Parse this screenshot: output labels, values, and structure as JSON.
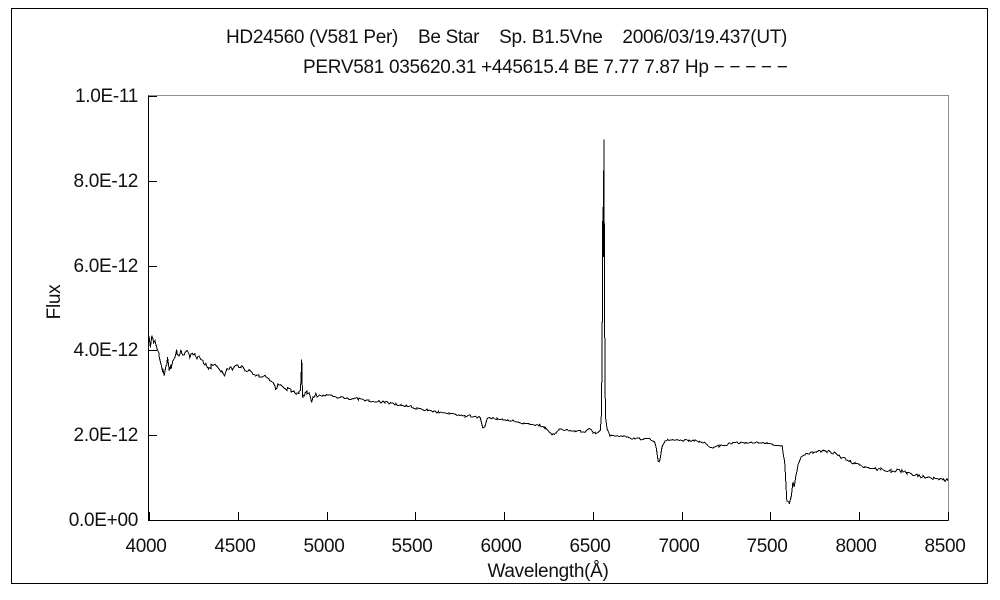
{
  "header": {
    "title_line1": "HD24560 (V581 Per)    Be Star    Sp. B1.5Vne    2006/03/19.437(UT)",
    "title_line2": "PERV581 035620.31 +445615.4 BE 7.77 7.87 Hp − − − − −"
  },
  "chart_data": {
    "type": "line",
    "title": "HD24560 (V581 Per)  Be Star  Sp. B1.5Vne  2006/03/19.437(UT)",
    "subtitle": "PERV581 035620.31 +445615.4 BE 7.77 7.87 Hp − − − − −",
    "xlabel": "Wavelength(Å)",
    "ylabel": "Flux",
    "xlim": [
      4000,
      8500
    ],
    "ylim_flux_1e12": [
      0,
      10
    ],
    "x_ticks": [
      4000,
      4500,
      5000,
      5500,
      6000,
      6500,
      7000,
      7500,
      8000,
      8500
    ],
    "x_tick_labels": [
      "4000",
      "4500",
      "5000",
      "5500",
      "6000",
      "6500",
      "7000",
      "7500",
      "8000",
      "8500"
    ],
    "y_ticks_flux_1e12": [
      0,
      2,
      4,
      6,
      8,
      10
    ],
    "y_tick_labels": [
      "0.0E+00",
      "2.0E-12",
      "4.0E-12",
      "6.0E-12",
      "8.0E-12",
      "1.0E-11"
    ],
    "grid": false,
    "legend_position": "none",
    "line_color": "#000000",
    "background_color": "#ffffff",
    "frame_top_right_color": "#8f8f8f",
    "flux_unit_factor": "1e-12",
    "series": [
      {
        "name": "HD24560 spectrum",
        "points": [
          [
            4000,
            4.33
          ],
          [
            4008,
            4.1
          ],
          [
            4016,
            4.28
          ],
          [
            4026,
            4.18
          ],
          [
            4036,
            4.22
          ],
          [
            4046,
            4.02
          ],
          [
            4056,
            3.92
          ],
          [
            4066,
            3.78
          ],
          [
            4076,
            3.58
          ],
          [
            4086,
            3.47
          ],
          [
            4096,
            3.62
          ],
          [
            4104,
            3.76
          ],
          [
            4114,
            3.58
          ],
          [
            4124,
            3.64
          ],
          [
            4134,
            3.74
          ],
          [
            4144,
            3.86
          ],
          [
            4156,
            3.94
          ],
          [
            4170,
            3.9
          ],
          [
            4184,
            3.97
          ],
          [
            4200,
            3.91
          ],
          [
            4214,
            3.95
          ],
          [
            4230,
            3.87
          ],
          [
            4246,
            3.93
          ],
          [
            4260,
            3.89
          ],
          [
            4276,
            3.84
          ],
          [
            4290,
            3.75
          ],
          [
            4306,
            3.7
          ],
          [
            4320,
            3.66
          ],
          [
            4336,
            3.56
          ],
          [
            4350,
            3.63
          ],
          [
            4366,
            3.67
          ],
          [
            4380,
            3.61
          ],
          [
            4396,
            3.55
          ],
          [
            4410,
            3.5
          ],
          [
            4426,
            3.43
          ],
          [
            4440,
            3.54
          ],
          [
            4456,
            3.59
          ],
          [
            4470,
            3.56
          ],
          [
            4486,
            3.61
          ],
          [
            4500,
            3.65
          ],
          [
            4520,
            3.6
          ],
          [
            4540,
            3.55
          ],
          [
            4560,
            3.52
          ],
          [
            4580,
            3.47
          ],
          [
            4600,
            3.43
          ],
          [
            4620,
            3.39
          ],
          [
            4640,
            3.34
          ],
          [
            4660,
            3.41
          ],
          [
            4680,
            3.3
          ],
          [
            4700,
            3.22
          ],
          [
            4713,
            3.1
          ],
          [
            4726,
            3.19
          ],
          [
            4740,
            3.17
          ],
          [
            4760,
            3.12
          ],
          [
            4780,
            3.09
          ],
          [
            4800,
            3.05
          ],
          [
            4816,
            3.01
          ],
          [
            4830,
            2.97
          ],
          [
            4846,
            3.02
          ],
          [
            4853,
            3.08
          ],
          [
            4857,
            3.45
          ],
          [
            4860,
            3.77
          ],
          [
            4863,
            3.18
          ],
          [
            4866,
            2.92
          ],
          [
            4876,
            2.96
          ],
          [
            4890,
            3.0
          ],
          [
            4906,
            2.95
          ],
          [
            4916,
            2.78
          ],
          [
            4926,
            2.92
          ],
          [
            4940,
            2.95
          ],
          [
            4960,
            2.92
          ],
          [
            4980,
            2.93
          ],
          [
            5000,
            2.95
          ],
          [
            5030,
            2.92
          ],
          [
            5060,
            2.9
          ],
          [
            5090,
            2.88
          ],
          [
            5120,
            2.86
          ],
          [
            5150,
            2.88
          ],
          [
            5180,
            2.85
          ],
          [
            5210,
            2.84
          ],
          [
            5240,
            2.82
          ],
          [
            5270,
            2.8
          ],
          [
            5300,
            2.79
          ],
          [
            5330,
            2.78
          ],
          [
            5360,
            2.76
          ],
          [
            5390,
            2.73
          ],
          [
            5420,
            2.71
          ],
          [
            5450,
            2.69
          ],
          [
            5480,
            2.67
          ],
          [
            5510,
            2.64
          ],
          [
            5540,
            2.62
          ],
          [
            5570,
            2.59
          ],
          [
            5600,
            2.56
          ],
          [
            5630,
            2.54
          ],
          [
            5660,
            2.52
          ],
          [
            5690,
            2.5
          ],
          [
            5720,
            2.48
          ],
          [
            5750,
            2.46
          ],
          [
            5780,
            2.45
          ],
          [
            5810,
            2.45
          ],
          [
            5840,
            2.44
          ],
          [
            5866,
            2.42
          ],
          [
            5880,
            2.16
          ],
          [
            5892,
            2.22
          ],
          [
            5904,
            2.4
          ],
          [
            5930,
            2.4
          ],
          [
            5960,
            2.38
          ],
          [
            5990,
            2.37
          ],
          [
            6020,
            2.35
          ],
          [
            6050,
            2.33
          ],
          [
            6080,
            2.31
          ],
          [
            6110,
            2.29
          ],
          [
            6140,
            2.27
          ],
          [
            6170,
            2.25
          ],
          [
            6200,
            2.23
          ],
          [
            6230,
            2.19
          ],
          [
            6252,
            2.1
          ],
          [
            6270,
            2.02
          ],
          [
            6284,
            2.0
          ],
          [
            6296,
            2.08
          ],
          [
            6310,
            2.13
          ],
          [
            6340,
            2.12
          ],
          [
            6370,
            2.11
          ],
          [
            6400,
            2.1
          ],
          [
            6430,
            2.09
          ],
          [
            6456,
            2.07
          ],
          [
            6480,
            2.15
          ],
          [
            6500,
            2.07
          ],
          [
            6516,
            2.04
          ],
          [
            6530,
            2.06
          ],
          [
            6542,
            2.12
          ],
          [
            6548,
            2.5
          ],
          [
            6552,
            4.0
          ],
          [
            6556,
            7.38
          ],
          [
            6559,
            6.2
          ],
          [
            6562,
            8.97
          ],
          [
            6565,
            6.0
          ],
          [
            6568,
            3.2
          ],
          [
            6572,
            2.4
          ],
          [
            6580,
            2.15
          ],
          [
            6596,
            2.0
          ],
          [
            6610,
            1.98
          ],
          [
            6640,
            1.99
          ],
          [
            6670,
            1.97
          ],
          [
            6700,
            1.95
          ],
          [
            6730,
            1.93
          ],
          [
            6760,
            1.92
          ],
          [
            6790,
            1.91
          ],
          [
            6820,
            1.9
          ],
          [
            6846,
            1.87
          ],
          [
            6858,
            1.68
          ],
          [
            6868,
            1.36
          ],
          [
            6878,
            1.44
          ],
          [
            6890,
            1.72
          ],
          [
            6902,
            1.84
          ],
          [
            6920,
            1.88
          ],
          [
            6950,
            1.9
          ],
          [
            6980,
            1.89
          ],
          [
            7010,
            1.88
          ],
          [
            7040,
            1.88
          ],
          [
            7070,
            1.87
          ],
          [
            7100,
            1.86
          ],
          [
            7130,
            1.82
          ],
          [
            7156,
            1.73
          ],
          [
            7180,
            1.71
          ],
          [
            7210,
            1.74
          ],
          [
            7240,
            1.77
          ],
          [
            7270,
            1.8
          ],
          [
            7300,
            1.81
          ],
          [
            7330,
            1.82
          ],
          [
            7360,
            1.82
          ],
          [
            7390,
            1.83
          ],
          [
            7420,
            1.82
          ],
          [
            7450,
            1.81
          ],
          [
            7480,
            1.8
          ],
          [
            7510,
            1.78
          ],
          [
            7540,
            1.77
          ],
          [
            7566,
            1.74
          ],
          [
            7580,
            1.38
          ],
          [
            7592,
            0.46
          ],
          [
            7606,
            0.4
          ],
          [
            7618,
            0.56
          ],
          [
            7626,
            0.88
          ],
          [
            7634,
            0.78
          ],
          [
            7644,
            1.05
          ],
          [
            7656,
            1.3
          ],
          [
            7670,
            1.45
          ],
          [
            7686,
            1.52
          ],
          [
            7700,
            1.56
          ],
          [
            7720,
            1.58
          ],
          [
            7740,
            1.6
          ],
          [
            7760,
            1.62
          ],
          [
            7780,
            1.62
          ],
          [
            7800,
            1.63
          ],
          [
            7820,
            1.62
          ],
          [
            7840,
            1.6
          ],
          [
            7860,
            1.57
          ],
          [
            7880,
            1.52
          ],
          [
            7900,
            1.48
          ],
          [
            7926,
            1.43
          ],
          [
            7950,
            1.38
          ],
          [
            7976,
            1.34
          ],
          [
            8000,
            1.3
          ],
          [
            8030,
            1.26
          ],
          [
            8060,
            1.23
          ],
          [
            8090,
            1.21
          ],
          [
            8120,
            1.19
          ],
          [
            8150,
            1.18
          ],
          [
            8180,
            1.17
          ],
          [
            8210,
            1.16
          ],
          [
            8240,
            1.14
          ],
          [
            8270,
            1.12
          ],
          [
            8300,
            1.09
          ],
          [
            8330,
            1.06
          ],
          [
            8360,
            1.03
          ],
          [
            8390,
            1.0
          ],
          [
            8420,
            0.98
          ],
          [
            8450,
            0.96
          ],
          [
            8476,
            0.95
          ],
          [
            8500,
            0.93
          ]
        ]
      }
    ]
  }
}
